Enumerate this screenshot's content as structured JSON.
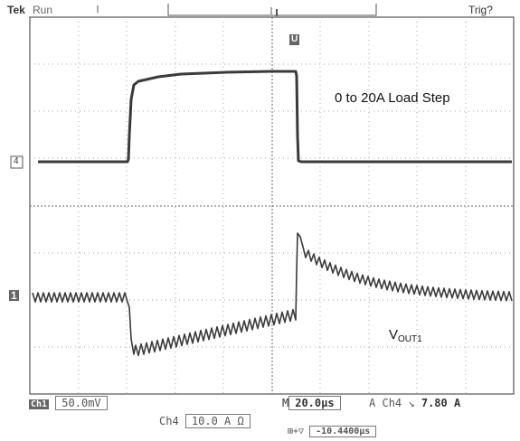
{
  "header": {
    "brand": "Tek",
    "run_state": "Run",
    "trigger_status": "Trig?"
  },
  "annotation": {
    "load_step": "0 to 20A Load Step",
    "vout_main": "V",
    "vout_sub": "OUT1"
  },
  "markers": {
    "trigger_marker": "U",
    "ch4_marker": "4",
    "ch1_marker": "1"
  },
  "status_bar": {
    "ch1_label": "Ch1",
    "ch1_scale": "50.0mV",
    "ch4_label": "Ch4",
    "ch4_scale": "10.0 A Ω",
    "timebase_prefix": "M",
    "timebase": "20.0μs",
    "trigger_mode": "A",
    "trigger_source": "Ch4",
    "trigger_slope": "↘",
    "trigger_level": "7.80 A",
    "delay_prefix": "⊞+▽",
    "delay_value": "-10.4400μs"
  },
  "colors": {
    "trace": "#3a3a3a",
    "grid": "#9a9a9a",
    "background": "#ffffff"
  }
}
